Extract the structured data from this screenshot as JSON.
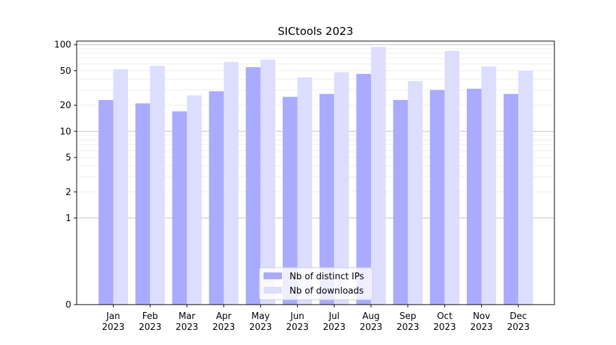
{
  "chart_data": {
    "type": "bar",
    "title": "SICtools 2023",
    "xlabel": "",
    "ylabel": "",
    "yscale": "symlog",
    "ylim": [
      0,
      110
    ],
    "grid": true,
    "legend_position": "bottom-center",
    "categories": [
      [
        "Jan",
        "2023"
      ],
      [
        "Feb",
        "2023"
      ],
      [
        "Mar",
        "2023"
      ],
      [
        "Apr",
        "2023"
      ],
      [
        "May",
        "2023"
      ],
      [
        "Jun",
        "2023"
      ],
      [
        "Jul",
        "2023"
      ],
      [
        "Aug",
        "2023"
      ],
      [
        "Sep",
        "2023"
      ],
      [
        "Oct",
        "2023"
      ],
      [
        "Nov",
        "2023"
      ],
      [
        "Dec",
        "2023"
      ]
    ],
    "y_ticks": [
      {
        "value": 0,
        "label": "0"
      },
      {
        "value": 1,
        "label": "1"
      },
      {
        "value": 2,
        "label": "2"
      },
      {
        "value": 5,
        "label": "5"
      },
      {
        "value": 10,
        "label": "10"
      },
      {
        "value": 20,
        "label": "20"
      },
      {
        "value": 50,
        "label": "50"
      },
      {
        "value": 100,
        "label": "100"
      }
    ],
    "series": [
      {
        "name": "Nb of distinct IPs",
        "color": "#aaaaff",
        "values": [
          23,
          21,
          17,
          29,
          55,
          25,
          27,
          46,
          23,
          30,
          31,
          27
        ]
      },
      {
        "name": "Nb of downloads",
        "color": "#ddddff",
        "values": [
          52,
          57,
          26,
          63,
          67,
          42,
          48,
          94,
          38,
          85,
          56,
          50
        ]
      }
    ]
  }
}
